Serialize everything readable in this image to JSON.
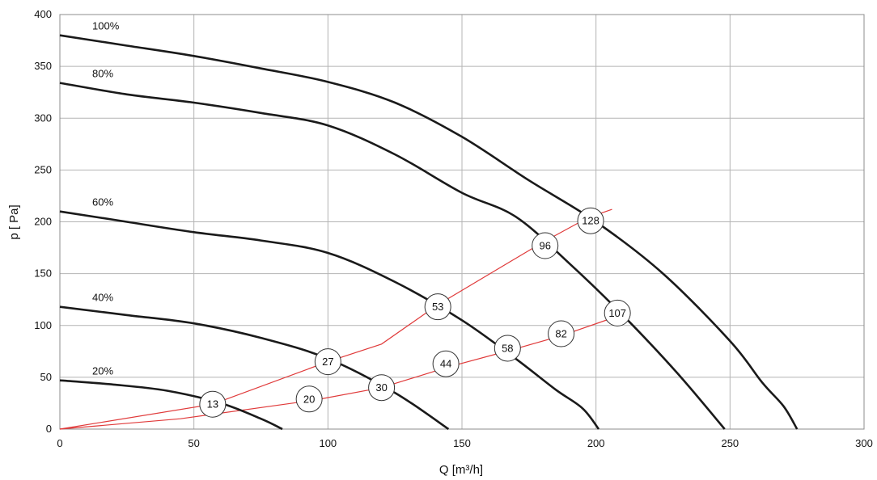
{
  "chart_data": {
    "type": "line",
    "title": "",
    "xlabel": "Q [m³/h]",
    "ylabel": "p [ Pa]",
    "xlim": [
      0,
      300
    ],
    "ylim": [
      0,
      400
    ],
    "xticks": [
      "0",
      "50",
      "100",
      "150",
      "200",
      "250",
      "300"
    ],
    "yticks": [
      "0",
      "50",
      "100",
      "150",
      "200",
      "250",
      "300",
      "350",
      "400"
    ],
    "grid": true,
    "colors": {
      "curve": "#1a1a1a",
      "system": "#e03a3a",
      "grid": "#b4b4b4"
    },
    "series": [
      {
        "name": "100%",
        "x": [
          0,
          25,
          50,
          75,
          100,
          125,
          150,
          175,
          200,
          225,
          250,
          262,
          270,
          275
        ],
        "y": [
          380,
          370,
          360,
          348,
          335,
          315,
          282,
          240,
          200,
          150,
          85,
          45,
          22,
          0
        ]
      },
      {
        "name": "80%",
        "x": [
          0,
          25,
          50,
          75,
          100,
          125,
          150,
          170,
          190,
          210,
          230,
          248
        ],
        "y": [
          334,
          323,
          315,
          305,
          293,
          265,
          228,
          205,
          160,
          110,
          55,
          0
        ]
      },
      {
        "name": "60%",
        "x": [
          0,
          25,
          50,
          75,
          100,
          125,
          150,
          170,
          185,
          195,
          201
        ],
        "y": [
          210,
          200,
          190,
          182,
          170,
          142,
          105,
          68,
          38,
          20,
          0
        ]
      },
      {
        "name": "40%",
        "x": [
          0,
          25,
          50,
          75,
          100,
          125,
          145
        ],
        "y": [
          118,
          110,
          102,
          88,
          68,
          35,
          0
        ]
      },
      {
        "name": "20%",
        "x": [
          0,
          20,
          40,
          60,
          75,
          83
        ],
        "y": [
          47,
          43,
          37,
          25,
          10,
          0
        ]
      }
    ],
    "system_curves": [
      {
        "x": [
          0,
          57,
          100,
          120,
          141,
          180,
          197,
          206
        ],
        "y": [
          0,
          24,
          65,
          82,
          120,
          180,
          204,
          212
        ]
      },
      {
        "x": [
          0,
          45,
          95,
          120,
          145,
          168,
          187,
          207
        ],
        "y": [
          0,
          10,
          28,
          40,
          60,
          76,
          90,
          108
        ]
      }
    ],
    "markers": [
      {
        "label": "13",
        "x": 57,
        "y": 24
      },
      {
        "label": "20",
        "x": 93,
        "y": 29
      },
      {
        "label": "27",
        "x": 100,
        "y": 65
      },
      {
        "label": "30",
        "x": 120,
        "y": 40
      },
      {
        "label": "44",
        "x": 144,
        "y": 63
      },
      {
        "label": "53",
        "x": 141,
        "y": 118
      },
      {
        "label": "58",
        "x": 167,
        "y": 78
      },
      {
        "label": "82",
        "x": 187,
        "y": 92
      },
      {
        "label": "96",
        "x": 181,
        "y": 177
      },
      {
        "label": "107",
        "x": 208,
        "y": 112
      },
      {
        "label": "128",
        "x": 198,
        "y": 201
      }
    ]
  }
}
